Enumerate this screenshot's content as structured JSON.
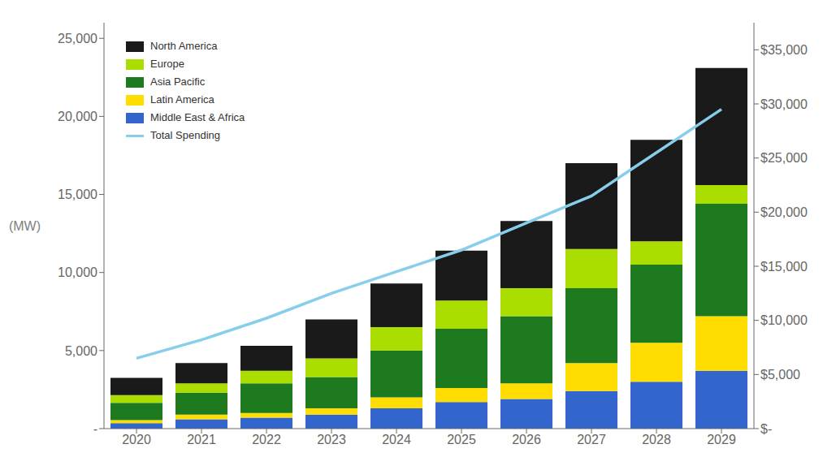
{
  "chart_data": {
    "type": "bar",
    "stacked": true,
    "categories": [
      "2020",
      "2021",
      "2022",
      "2023",
      "2024",
      "2025",
      "2026",
      "2027",
      "2028",
      "2029"
    ],
    "series": [
      {
        "name": "Middle East & Africa",
        "color": "#3366cc",
        "values": [
          350,
          600,
          700,
          900,
          1300,
          1700,
          1900,
          2400,
          3000,
          3700
        ]
      },
      {
        "name": "Latin America",
        "color": "#ffdd00",
        "values": [
          200,
          300,
          300,
          400,
          700,
          900,
          1000,
          1800,
          2500,
          3500
        ]
      },
      {
        "name": "Asia Pacific",
        "color": "#1e7a1e",
        "values": [
          1100,
          1400,
          1900,
          2000,
          3000,
          3800,
          4300,
          4800,
          5000,
          7200
        ]
      },
      {
        "name": "Europe",
        "color": "#aadd00",
        "values": [
          500,
          600,
          800,
          1200,
          1500,
          1800,
          1800,
          2500,
          1500,
          1200
        ]
      },
      {
        "name": "North America",
        "color": "#1a1a1a",
        "values": [
          1100,
          1300,
          1600,
          2500,
          2800,
          3200,
          4300,
          5500,
          6500,
          7500
        ]
      },
      {
        "name": "Total Spending",
        "type": "line",
        "axis": "y2",
        "color": "#87ceeb",
        "values": [
          6500,
          8200,
          10200,
          12500,
          14500,
          16500,
          19000,
          21500,
          25500,
          29500
        ]
      }
    ],
    "ylabel": "(MW)",
    "ylim": [
      0,
      26000
    ],
    "yticks": [
      {
        "value": 0,
        "label": "-"
      },
      {
        "value": 5000,
        "label": "5,000"
      },
      {
        "value": 10000,
        "label": "10,000"
      },
      {
        "value": 15000,
        "label": "15,000"
      },
      {
        "value": 20000,
        "label": "20,000"
      },
      {
        "value": 25000,
        "label": "25,000"
      }
    ],
    "y2lim": [
      0,
      37500
    ],
    "y2ticks": [
      {
        "value": 0,
        "label": "$-"
      },
      {
        "value": 5000,
        "label": "$5,000"
      },
      {
        "value": 10000,
        "label": "$10,000"
      },
      {
        "value": 15000,
        "label": "$15,000"
      },
      {
        "value": 20000,
        "label": "$20,000"
      },
      {
        "value": 25000,
        "label": "$25,000"
      },
      {
        "value": 30000,
        "label": "$30,000"
      },
      {
        "value": 35000,
        "label": "$35,000"
      }
    ],
    "grid": false,
    "legend": "upper left"
  }
}
